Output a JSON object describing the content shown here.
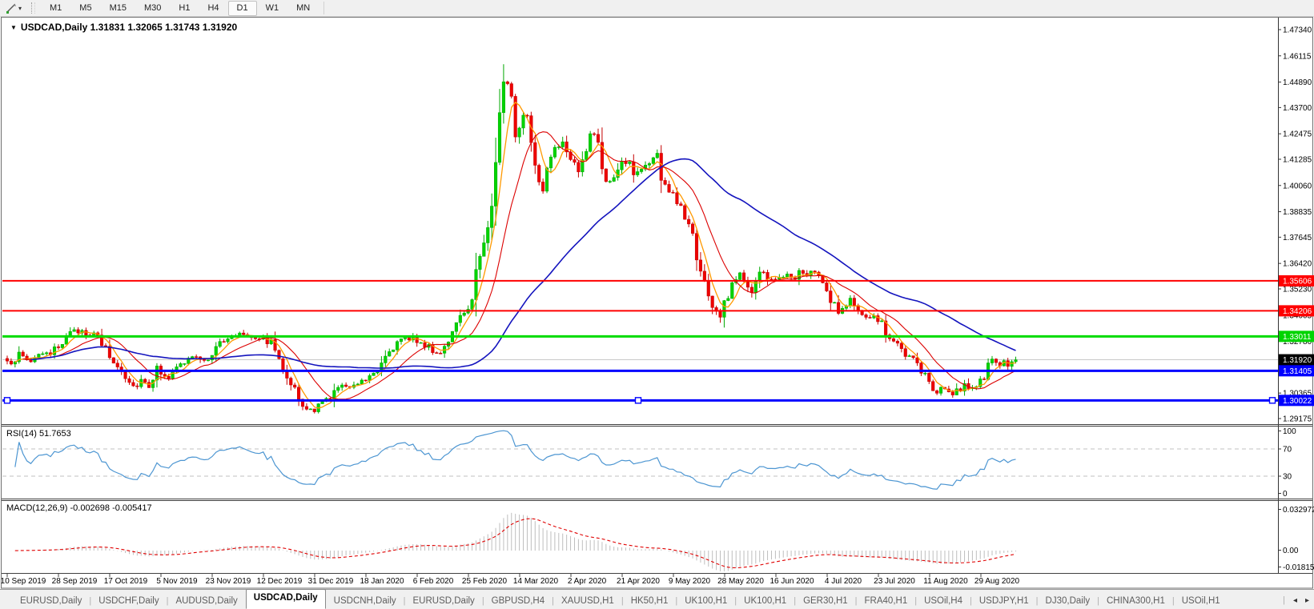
{
  "toolbar": {
    "draw_tool_icon": "line-draw-icon",
    "dropdown_caret": "▾",
    "timeframes": [
      {
        "label": "M1",
        "active": false
      },
      {
        "label": "M5",
        "active": false
      },
      {
        "label": "M15",
        "active": false
      },
      {
        "label": "M30",
        "active": false
      },
      {
        "label": "H1",
        "active": false
      },
      {
        "label": "H4",
        "active": false
      },
      {
        "label": "D1",
        "active": true
      },
      {
        "label": "W1",
        "active": false
      },
      {
        "label": "MN",
        "active": false
      }
    ]
  },
  "chart": {
    "collapse_marker": "▼",
    "symbol_period": "USDCAD,Daily",
    "open": "1.31831",
    "high": "1.32065",
    "low": "1.31743",
    "close": "1.31920",
    "colors": {
      "bull": "#00D400",
      "bull_border": "#00A800",
      "bear": "#EE0000",
      "bear_border": "#C40000",
      "ma_fast": "#FF9900",
      "ma_mid": "#DC0000",
      "ma_slow": "#1414BE",
      "price_line": "#C8C8C8",
      "background": "#FFFFFF",
      "border": "#6e6e6e"
    }
  },
  "price_axis": {
    "ticks": [
      {
        "label": "1.47340",
        "price": 1.4734
      },
      {
        "label": "1.46115",
        "price": 1.46115
      },
      {
        "label": "1.44890",
        "price": 1.4489
      },
      {
        "label": "1.43700",
        "price": 1.437
      },
      {
        "label": "1.42475",
        "price": 1.42475
      },
      {
        "label": "1.41285",
        "price": 1.41285
      },
      {
        "label": "1.40060",
        "price": 1.4006
      },
      {
        "label": "1.38835",
        "price": 1.38835
      },
      {
        "label": "1.37645",
        "price": 1.37645
      },
      {
        "label": "1.36420",
        "price": 1.3642
      },
      {
        "label": "1.35230",
        "price": 1.3523
      },
      {
        "label": "1.34005",
        "price": 1.34005
      },
      {
        "label": "1.32780",
        "price": 1.3278
      },
      {
        "label": "1.31555",
        "price": 1.31555
      },
      {
        "label": "1.30365",
        "price": 1.30365
      },
      {
        "label": "1.29175",
        "price": 1.29175
      }
    ],
    "badges": [
      {
        "label": "1.35606",
        "price": 1.35606,
        "bg": "#FF0000",
        "fg": "#FFFFFF"
      },
      {
        "label": "1.34206",
        "price": 1.34206,
        "bg": "#FF0000",
        "fg": "#FFFFFF"
      },
      {
        "label": "1.33011",
        "price": 1.33011,
        "bg": "#00D400",
        "fg": "#FFFFFF"
      },
      {
        "label": "1.31920",
        "price": 1.3192,
        "bg": "#000000",
        "fg": "#FFFFFF"
      },
      {
        "label": "1.31405",
        "price": 1.31405,
        "bg": "#0000FF",
        "fg": "#FFFFFF"
      },
      {
        "label": "1.30022",
        "price": 1.30022,
        "bg": "#0000FF",
        "fg": "#FFFFFF"
      }
    ]
  },
  "horizontal_lines": [
    {
      "price": 1.35606,
      "color": "#FF0000",
      "width": 2,
      "selected": false
    },
    {
      "price": 1.34206,
      "color": "#FF0000",
      "width": 2,
      "selected": false
    },
    {
      "price": 1.33011,
      "color": "#00DC00",
      "width": 3,
      "selected": false
    },
    {
      "price": 1.31405,
      "color": "#0000FF",
      "width": 3,
      "selected": false
    },
    {
      "price": 1.30022,
      "color": "#0000FF",
      "width": 3,
      "selected": true
    }
  ],
  "current_price_line": {
    "price": 1.3192,
    "color": "#C8C8C8"
  },
  "rsi_panel": {
    "label": "RSI(14)",
    "value": "51.7653",
    "axis_labels": [
      "100",
      "70",
      "30",
      "0"
    ],
    "levels": [
      70,
      30
    ],
    "line_color": "#4D96D2",
    "level_color": "#C0C0C0"
  },
  "macd_panel": {
    "label": "MACD(12,26,9)",
    "values": "-0.002698 -0.005417",
    "axis_labels": [
      "0.032972",
      "0.00",
      "-0.018154"
    ],
    "histogram_color": "#BEBEBE",
    "signal_color": "#E00000"
  },
  "time_axis": {
    "labels": [
      "10 Sep 2019",
      "28 Sep 2019",
      "17 Oct 2019",
      "5 Nov 2019",
      "23 Nov 2019",
      "12 Dec 2019",
      "31 Dec 2019",
      "18 Jan 2020",
      "6 Feb 2020",
      "25 Feb 2020",
      "14 Mar 2020",
      "2 Apr 2020",
      "21 Apr 2020",
      "9 May 2020",
      "28 May 2020",
      "16 Jun 2020",
      "4 Jul 2020",
      "23 Jul 2020",
      "11 Aug 2020",
      "29 Aug 2020"
    ]
  },
  "tabs": {
    "items": [
      "EURUSD,Daily",
      "USDCHF,Daily",
      "AUDUSD,Daily",
      "USDCAD,Daily",
      "USDCNH,Daily",
      "EURUSD,Daily",
      "GBPUSD,H4",
      "XAUUSD,H1",
      "HK50,H1",
      "UK100,H1",
      "UK100,H1",
      "GER30,H1",
      "FRA40,H1",
      "USOil,H4",
      "USDJPY,H1",
      "DJ30,Daily",
      "CHINA300,H1",
      "USOil,H1"
    ],
    "active_index": 3,
    "scroll_left": "◂",
    "scroll_right": "▸"
  },
  "chart_data": {
    "type": "candlestick",
    "symbol": "USDCAD",
    "timeframe": "Daily",
    "bars": 257,
    "visible_price_range": [
      1.289,
      1.4787
    ],
    "last_bar": {
      "open": 1.31831,
      "high": 1.32065,
      "low": 1.31743,
      "close": 1.3192
    },
    "close_anchors": [
      [
        0,
        1.317
      ],
      [
        3,
        1.3215
      ],
      [
        6,
        1.3185
      ],
      [
        8,
        1.3225
      ],
      [
        11,
        1.3205
      ],
      [
        15,
        1.331
      ],
      [
        19,
        1.333
      ],
      [
        23,
        1.3295
      ],
      [
        27,
        1.318
      ],
      [
        30,
        1.3125
      ],
      [
        32,
        1.3068
      ],
      [
        34,
        1.31
      ],
      [
        36,
        1.308
      ],
      [
        38,
        1.315
      ],
      [
        41,
        1.3115
      ],
      [
        44,
        1.3165
      ],
      [
        47,
        1.321
      ],
      [
        50,
        1.3175
      ],
      [
        53,
        1.326
      ],
      [
        56,
        1.3285
      ],
      [
        59,
        1.332
      ],
      [
        62,
        1.3305
      ],
      [
        65,
        1.329
      ],
      [
        67,
        1.327
      ],
      [
        70,
        1.317
      ],
      [
        73,
        1.305
      ],
      [
        75,
        1.2965
      ],
      [
        78,
        1.2958
      ],
      [
        81,
        1.3005
      ],
      [
        84,
        1.306
      ],
      [
        88,
        1.308
      ],
      [
        91,
        1.3105
      ],
      [
        94,
        1.316
      ],
      [
        97,
        1.324
      ],
      [
        100,
        1.328
      ],
      [
        103,
        1.33
      ],
      [
        106,
        1.326
      ],
      [
        109,
        1.322
      ],
      [
        111,
        1.326
      ],
      [
        113,
        1.332
      ],
      [
        115,
        1.338
      ],
      [
        117,
        1.342
      ],
      [
        119,
        1.36
      ],
      [
        121,
        1.375
      ],
      [
        123,
        1.393
      ],
      [
        124,
        1.41
      ],
      [
        125,
        1.435
      ],
      [
        126,
        1.45
      ],
      [
        128,
        1.444
      ],
      [
        129,
        1.425
      ],
      [
        130,
        1.43
      ],
      [
        132,
        1.437
      ],
      [
        133,
        1.418
      ],
      [
        134,
        1.408
      ],
      [
        136,
        1.399
      ],
      [
        137,
        1.409
      ],
      [
        139,
        1.419
      ],
      [
        141,
        1.421
      ],
      [
        143,
        1.415
      ],
      [
        145,
        1.409
      ],
      [
        147,
        1.418
      ],
      [
        149,
        1.426
      ],
      [
        151,
        1.409
      ],
      [
        153,
        1.401
      ],
      [
        155,
        1.407
      ],
      [
        157,
        1.413
      ],
      [
        159,
        1.406
      ],
      [
        161,
        1.408
      ],
      [
        163,
        1.412
      ],
      [
        165,
        1.414
      ],
      [
        166,
        1.403
      ],
      [
        168,
        1.398
      ],
      [
        170,
        1.393
      ],
      [
        172,
        1.387
      ],
      [
        174,
        1.378
      ],
      [
        175,
        1.368
      ],
      [
        177,
        1.356
      ],
      [
        178,
        1.348
      ],
      [
        180,
        1.342
      ],
      [
        181,
        1.339
      ],
      [
        183,
        1.35
      ],
      [
        184,
        1.356
      ],
      [
        186,
        1.362
      ],
      [
        187,
        1.356
      ],
      [
        189,
        1.353
      ],
      [
        190,
        1.357
      ],
      [
        192,
        1.361
      ],
      [
        193,
        1.358
      ],
      [
        195,
        1.356
      ],
      [
        197,
        1.359
      ],
      [
        199,
        1.357
      ],
      [
        201,
        1.36
      ],
      [
        203,
        1.358
      ],
      [
        205,
        1.361
      ],
      [
        206,
        1.357
      ],
      [
        208,
        1.351
      ],
      [
        210,
        1.345
      ],
      [
        211,
        1.3415
      ],
      [
        213,
        1.344
      ],
      [
        214,
        1.347
      ],
      [
        216,
        1.343
      ],
      [
        217,
        1.339
      ],
      [
        219,
        1.336
      ],
      [
        220,
        1.34
      ],
      [
        222,
        1.337
      ],
      [
        223,
        1.333
      ],
      [
        225,
        1.328
      ],
      [
        227,
        1.323
      ],
      [
        228,
        1.319
      ],
      [
        230,
        1.322
      ],
      [
        231,
        1.316
      ],
      [
        233,
        1.312
      ],
      [
        234,
        1.308
      ],
      [
        236,
        1.303
      ],
      [
        237,
        1.306
      ],
      [
        239,
        1.304
      ],
      [
        240,
        1.302
      ],
      [
        242,
        1.306
      ],
      [
        243,
        1.309
      ],
      [
        245,
        1.305
      ],
      [
        246,
        1.308
      ],
      [
        248,
        1.312
      ],
      [
        250,
        1.3185
      ],
      [
        251,
        1.3165
      ],
      [
        253,
        1.318
      ],
      [
        254,
        1.3175
      ],
      [
        255,
        1.31831
      ],
      [
        256,
        1.3192
      ]
    ],
    "indicators": [
      {
        "name": "MA-fast",
        "type": "sma",
        "period": 5,
        "color": "#FF9900"
      },
      {
        "name": "MA-mid",
        "type": "sma",
        "period": 13,
        "color": "#DC0000"
      },
      {
        "name": "MA-slow",
        "type": "sma",
        "period": 50,
        "color": "#1414BE"
      },
      {
        "name": "RSI",
        "period": 14,
        "last_value": 51.7653
      },
      {
        "name": "MACD",
        "fast": 12,
        "slow": 26,
        "signal": 9,
        "last_macd": -0.002698,
        "last_signal": -0.005417
      }
    ]
  }
}
